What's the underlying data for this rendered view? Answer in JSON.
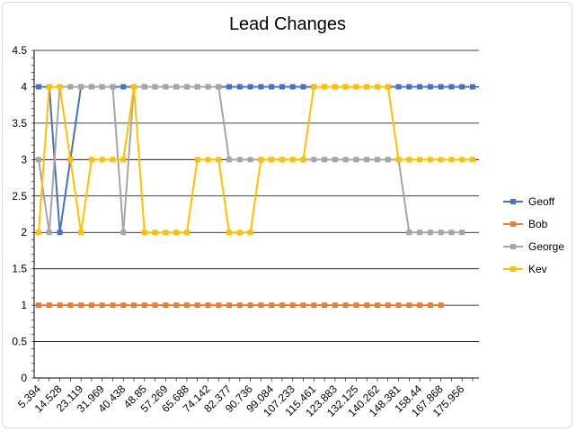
{
  "chart_data": {
    "type": "line",
    "title": "Lead Changes",
    "xlabel": "",
    "ylabel": "",
    "ylim": [
      0,
      4.5
    ],
    "yticks": [
      "0",
      "0.5",
      "1",
      "1.5",
      "2",
      "2.5",
      "3",
      "3.5",
      "4",
      "4.5"
    ],
    "x_tick_labels": [
      "5.394",
      "14.528",
      "23.119",
      "31.969",
      "40.438",
      "48.85",
      "57.269",
      "65.688",
      "74.142",
      "82.377",
      "90.736",
      "99.084",
      "107.233",
      "115.461",
      "123.883",
      "132.125",
      "140.262",
      "148.381",
      "158.44",
      "167.868",
      "175.956"
    ],
    "grid": true,
    "legend_position": "right",
    "series": [
      {
        "name": "Geoff",
        "color": "#4472C4",
        "values": [
          4,
          4,
          2,
          3,
          4,
          4,
          4,
          4,
          4,
          4,
          4,
          4,
          4,
          4,
          4,
          4,
          4,
          4,
          4,
          4,
          4,
          4,
          4,
          4,
          4,
          4,
          4,
          4,
          4,
          4,
          4,
          4,
          4,
          4,
          4,
          4,
          4,
          4,
          4,
          4,
          4,
          4
        ]
      },
      {
        "name": "Bob",
        "color": "#ED7D31",
        "values": [
          1,
          1,
          1,
          1,
          1,
          1,
          1,
          1,
          1,
          1,
          1,
          1,
          1,
          1,
          1,
          1,
          1,
          1,
          1,
          1,
          1,
          1,
          1,
          1,
          1,
          1,
          1,
          1,
          1,
          1,
          1,
          1,
          1,
          1,
          1,
          1,
          1,
          1,
          1,
          null,
          null,
          null
        ]
      },
      {
        "name": "George",
        "color": "#A5A5A5",
        "values": [
          3,
          2,
          4,
          4,
          4,
          4,
          4,
          4,
          2,
          4,
          4,
          4,
          4,
          4,
          4,
          4,
          4,
          4,
          3,
          3,
          3,
          3,
          3,
          3,
          3,
          3,
          3,
          3,
          3,
          3,
          3,
          3,
          3,
          3,
          3,
          2,
          2,
          2,
          2,
          2,
          2,
          null
        ]
      },
      {
        "name": "Kev",
        "color": "#FFC000",
        "values": [
          2,
          4,
          4,
          3,
          2,
          3,
          3,
          3,
          3,
          4,
          2,
          2,
          2,
          2,
          2,
          3,
          3,
          3,
          2,
          2,
          2,
          3,
          3,
          3,
          3,
          3,
          4,
          4,
          4,
          4,
          4,
          4,
          4,
          4,
          3,
          3,
          3,
          3,
          3,
          3,
          3,
          3
        ]
      }
    ]
  }
}
